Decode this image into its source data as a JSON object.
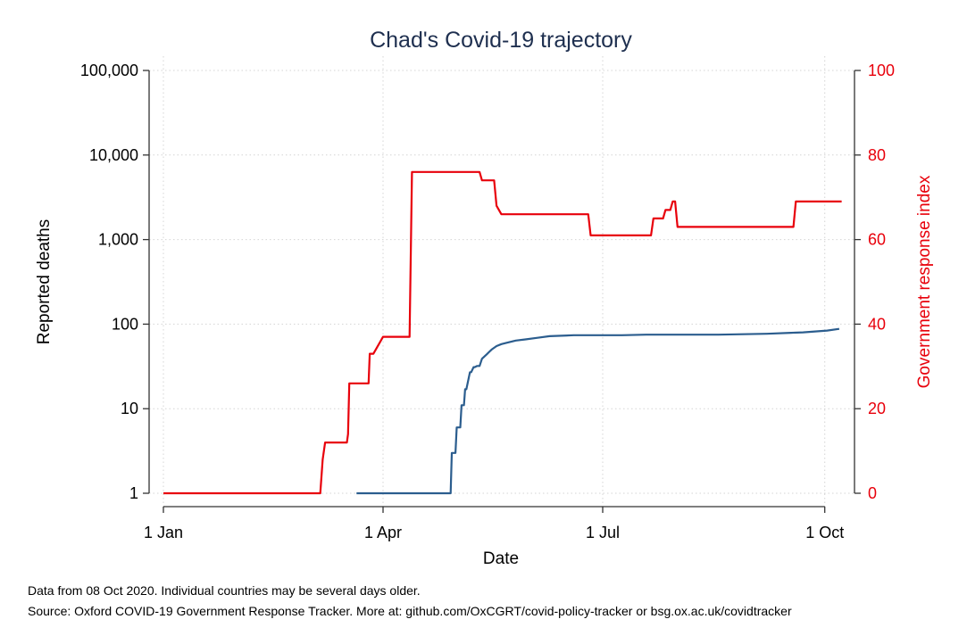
{
  "chart_data": {
    "type": "line",
    "title": "Chad's Covid-19 trajectory",
    "xlabel": "Date",
    "ylabel": "Reported deaths",
    "y2label": "Government response index",
    "x_ticks": [
      "1 Jan",
      "1 Apr",
      "1 Jul",
      "1 Oct"
    ],
    "x_tick_days": [
      0,
      91,
      182,
      274
    ],
    "xlim_days": [
      0,
      281
    ],
    "y_scale": "log",
    "ylim": [
      1,
      100000
    ],
    "y_ticks": [
      "1",
      "10",
      "100",
      "1,000",
      "10,000",
      "100,000"
    ],
    "y_tick_values": [
      1,
      10,
      100,
      1000,
      10000,
      100000
    ],
    "y2lim": [
      0,
      100
    ],
    "y2_ticks": [
      "0",
      "20",
      "40",
      "60",
      "80",
      "100"
    ],
    "y2_tick_values": [
      0,
      20,
      40,
      60,
      80,
      100
    ],
    "grid": true,
    "series": [
      {
        "name": "",
        "axis": "left",
        "color": "#2b5d8e",
        "x": [
          80,
          88,
          95,
          107,
          119,
          119.5,
          121,
          121.5,
          123,
          123.5,
          124.5,
          125,
          125.5,
          127,
          127.5,
          128.5,
          129,
          130,
          131,
          132,
          134,
          135,
          136,
          138,
          140,
          142,
          146,
          150,
          155,
          160,
          165,
          170,
          180,
          190,
          200,
          210,
          220,
          230,
          240,
          250,
          260,
          265,
          270,
          275,
          280
        ],
        "y": [
          1,
          1,
          1,
          1,
          1,
          3,
          3,
          6,
          6,
          11,
          11,
          17,
          17,
          27,
          27,
          31,
          31,
          32,
          32,
          39,
          44,
          47,
          50,
          55,
          58,
          60,
          64,
          66,
          69,
          72,
          73,
          74,
          74,
          74,
          75,
          75,
          75,
          75,
          76,
          77,
          79,
          80,
          82,
          84,
          88
        ]
      },
      {
        "name": "",
        "axis": "right",
        "color": "#e8000b",
        "x": [
          0,
          65,
          66,
          67,
          76,
          76.5,
          77,
          78,
          85,
          85.5,
          86,
          87,
          91,
          92,
          102,
          103,
          104,
          131,
          132,
          137,
          138,
          140,
          176,
          177,
          202,
          203,
          207,
          208,
          210,
          211,
          212,
          213,
          261,
          262,
          281
        ],
        "y": [
          0,
          0,
          8,
          12,
          12,
          14,
          26,
          26,
          26,
          33,
          33,
          33,
          37,
          37,
          37,
          76,
          76,
          76,
          74,
          74,
          68,
          66,
          66,
          61,
          61,
          65,
          65,
          67,
          67,
          69,
          69,
          63,
          63,
          69,
          69
        ]
      }
    ]
  },
  "notes": {
    "line1": "Data from 08 Oct 2020. Individual countries may be several days older.",
    "line2": "Source: Oxford COVID-19 Government Response Tracker. More at: github.com/OxCGRT/covid-policy-tracker or bsg.ox.ac.uk/covidtracker"
  }
}
